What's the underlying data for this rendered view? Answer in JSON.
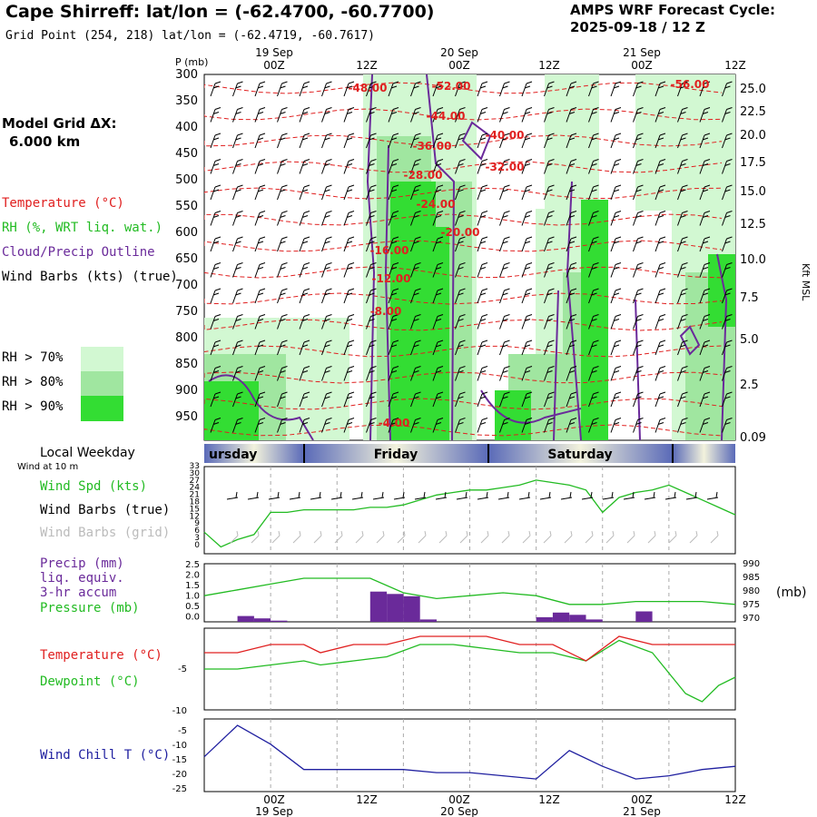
{
  "header": {
    "title": "Cape Shirreff:  lat/lon = (-62.4700, -60.7700)",
    "grid_point": "Grid Point (254, 218) lat/lon = (-62.4719, -60.7617)",
    "cycle_line1": "AMPS WRF Forecast Cycle:",
    "cycle_line2": "2025-09-18 / 12  Z"
  },
  "model_grid": {
    "line1": "Model Grid ΔX:",
    "line2": "6.000 km"
  },
  "legend": {
    "temperature": "Temperature (°C)",
    "rh": "RH (%, WRT liq. wat.)",
    "cloud": "Cloud/Precip Outline",
    "wind": "Wind Barbs (kts) (true)",
    "rh70": "RH > 70%",
    "rh80": "RH > 80%",
    "rh90": "RH > 90%",
    "rh_colors": [
      "#d2f8d2",
      "#a0e6a0",
      "#33dd33"
    ]
  },
  "time_axis": {
    "top_dates": [
      "19 Sep",
      "20 Sep",
      "21 Sep"
    ],
    "ticks": [
      "00Z",
      "12Z",
      "00Z",
      "12Z",
      "00Z",
      "12Z"
    ],
    "bottom_dates": [
      "19 Sep",
      "20 Sep",
      "21 Sep"
    ]
  },
  "weekday": {
    "label": "Local Weekday",
    "wind_note": "Wind at 10 m",
    "days": [
      "ursday",
      "Friday",
      "Saturday"
    ]
  },
  "chart_data": [
    {
      "type": "heatmap",
      "title": "Cross-section",
      "ylabel": "P (mb)",
      "y2label": "Kft MSL",
      "pressure_ticks": [
        "300",
        "350",
        "400",
        "450",
        "500",
        "550",
        "600",
        "650",
        "700",
        "750",
        "800",
        "850",
        "900",
        "950"
      ],
      "kft_ticks": [
        "25.0",
        "22.5",
        "20.0",
        "17.5",
        "15.0",
        "12.5",
        "10.0",
        "7.5",
        "5.0",
        "2.5",
        "0.09"
      ],
      "temperature_labels": [
        "-48.00",
        "-52.00",
        "-56.00",
        "-44.00",
        "-40.00",
        "-36.00",
        "-32.00",
        "-28.00",
        "-24.00",
        "-20.00",
        "-16.00",
        "-12.00",
        "-8.00",
        "-4.00"
      ]
    },
    {
      "type": "line",
      "title": "Wind Spd (kts)",
      "labels": [
        "Wind Spd (kts)",
        "Wind Barbs (true)",
        "Wind Barbs (grid)"
      ],
      "y_ticks": [
        "33",
        "30",
        "27",
        "24",
        "21",
        "18",
        "15",
        "12",
        "9",
        "6",
        "3",
        "0"
      ],
      "ylim": [
        0,
        33
      ],
      "x": [
        0,
        3,
        6,
        9,
        12,
        15,
        18,
        21,
        24,
        27,
        30,
        33,
        36,
        39,
        42,
        45,
        48,
        51,
        54,
        57,
        60,
        63,
        66,
        69,
        72,
        75,
        78,
        81,
        84,
        87,
        90,
        93,
        96
      ],
      "values": [
        8,
        2,
        5,
        7,
        16,
        16,
        17,
        17,
        17,
        17,
        18,
        18,
        19,
        21,
        23,
        24,
        25,
        25,
        26,
        27,
        29,
        28,
        27,
        25,
        16,
        22,
        24,
        25,
        27,
        24,
        21,
        18,
        15
      ]
    },
    {
      "type": "bar",
      "title": "Precip / Pressure",
      "labels": [
        "Precip (mm)",
        "liq. equiv.",
        "3-hr accum",
        "Pressure (mb)"
      ],
      "y_ticks": [
        "2.5",
        "2.0",
        "1.5",
        "1.0",
        "0.5",
        "0.0"
      ],
      "y2_ticks": [
        "990",
        "985",
        "980",
        "975",
        "970"
      ],
      "y2label": "(mb)",
      "precip_x": [
        7.5,
        10.5,
        13.5,
        31.5,
        34.5,
        37.5,
        40.5,
        61.5,
        64.5,
        67.5,
        70.5,
        79.5
      ],
      "precip": [
        0.25,
        0.15,
        0.05,
        1.3,
        1.2,
        1.1,
        0.1,
        0.2,
        0.4,
        0.3,
        0.1,
        0.45
      ],
      "pressure_x": [
        0,
        6,
        12,
        18,
        24,
        30,
        36,
        42,
        48,
        54,
        60,
        66,
        72,
        78,
        84,
        90,
        96
      ],
      "pressure": [
        979,
        981,
        983,
        985,
        985,
        985,
        980,
        978,
        979,
        980,
        979,
        976,
        976,
        977,
        977,
        977,
        976
      ]
    },
    {
      "type": "line",
      "title": "Temperature / Dewpoint",
      "labels": [
        "Temperature (°C)",
        "Dewpoint (°C)"
      ],
      "y_ticks": [
        "-5",
        "-10"
      ],
      "ylim": [
        -10,
        0
      ],
      "x": [
        0,
        6,
        12,
        18,
        21,
        27,
        33,
        39,
        45,
        51,
        57,
        63,
        69,
        75,
        81,
        87,
        90,
        93,
        96
      ],
      "temperature": [
        -3,
        -3,
        -2,
        -2,
        -3,
        -2,
        -2,
        -1,
        -1,
        -1,
        -2,
        -2,
        -4,
        -1,
        -2,
        -2,
        -2,
        -2,
        -2
      ],
      "dewpoint": [
        -5,
        -5,
        -4.5,
        -4,
        -4.5,
        -4,
        -3.5,
        -2,
        -2,
        -2.5,
        -3,
        -3,
        -4,
        -1.5,
        -3,
        -8,
        -9,
        -7,
        -6
      ]
    },
    {
      "type": "line",
      "title": "Wind Chill T (°C)",
      "labels": [
        "Wind Chill T (°C)"
      ],
      "y_ticks": [
        "-5",
        "-10",
        "-15",
        "-20",
        "-25"
      ],
      "ylim": [
        -25,
        -2
      ],
      "x": [
        0,
        6,
        12,
        18,
        24,
        30,
        36,
        42,
        48,
        54,
        60,
        66,
        72,
        78,
        84,
        90,
        96
      ],
      "values": [
        -14,
        -4,
        -10,
        -18,
        -18,
        -18,
        -18,
        -19,
        -19,
        -20,
        -21,
        -12,
        -17,
        -21,
        -20,
        -18,
        -17
      ]
    }
  ]
}
